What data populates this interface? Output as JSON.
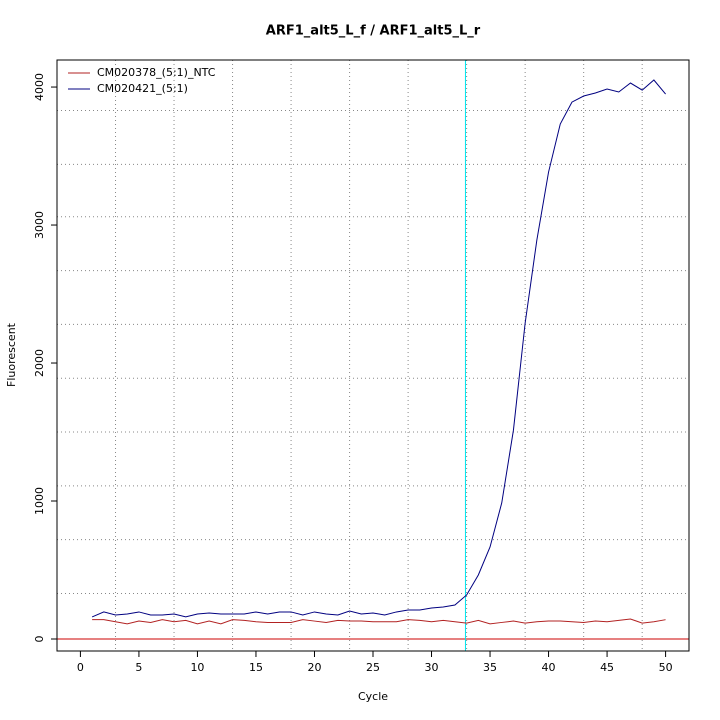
{
  "chart_data": {
    "type": "line",
    "title": "ARF1_alt5_L_f / ARF1_alt5_L_r",
    "x_label": "Cycle",
    "y_label": "Fluorescent",
    "x": [
      1,
      2,
      3,
      4,
      5,
      6,
      7,
      8,
      9,
      10,
      11,
      12,
      13,
      14,
      15,
      16,
      17,
      18,
      19,
      20,
      21,
      22,
      23,
      24,
      25,
      26,
      27,
      28,
      29,
      30,
      31,
      32,
      33,
      34,
      35,
      36,
      37,
      38,
      39,
      40,
      41,
      42,
      43,
      44,
      45,
      46,
      47,
      48,
      49,
      50
    ],
    "series": [
      {
        "name": "CM020378_(5:1)_NTC",
        "color": "#b22222",
        "values": [
          140,
          140,
          125,
          110,
          130,
          120,
          140,
          125,
          135,
          110,
          130,
          110,
          140,
          135,
          125,
          120,
          120,
          120,
          140,
          130,
          120,
          135,
          130,
          130,
          125,
          125,
          125,
          140,
          135,
          125,
          135,
          125,
          115,
          135,
          110,
          120,
          130,
          115,
          125,
          130,
          130,
          125,
          120,
          130,
          125,
          135,
          145,
          115,
          125,
          140
        ]
      },
      {
        "name": "CM020421_(5:1)",
        "color": "#000080",
        "values": [
          160,
          196,
          174,
          181,
          196,
          174,
          174,
          181,
          160,
          181,
          188,
          181,
          181,
          181,
          196,
          181,
          196,
          196,
          174,
          196,
          181,
          174,
          203,
          181,
          188,
          174,
          196,
          210,
          210,
          225,
          232,
          246,
          319,
          464,
          667,
          986,
          1514,
          2290,
          2891,
          3384,
          3732,
          3891,
          3935,
          3957,
          3986,
          3964,
          4029,
          3978,
          4051,
          3949
        ]
      }
    ],
    "xlim": [
      -2,
      52
    ],
    "ylim": [
      -87,
      4196
    ],
    "xticks": [
      0,
      5,
      10,
      15,
      20,
      25,
      30,
      35,
      40,
      45,
      50
    ],
    "yticks": [
      0,
      1000,
      2000,
      3000,
      4000
    ],
    "x_grid": [
      3,
      8,
      13,
      18,
      23,
      28,
      33,
      38,
      43,
      48
    ],
    "y_grid": [
      330,
      720,
      1110,
      1500,
      1890,
      2280,
      2670,
      3060,
      3440,
      3830
    ],
    "threshold": 0,
    "threshold_color": "#cc0000",
    "ct": 32.9,
    "ct_color": "#00e5ee",
    "legend": "top-left"
  }
}
